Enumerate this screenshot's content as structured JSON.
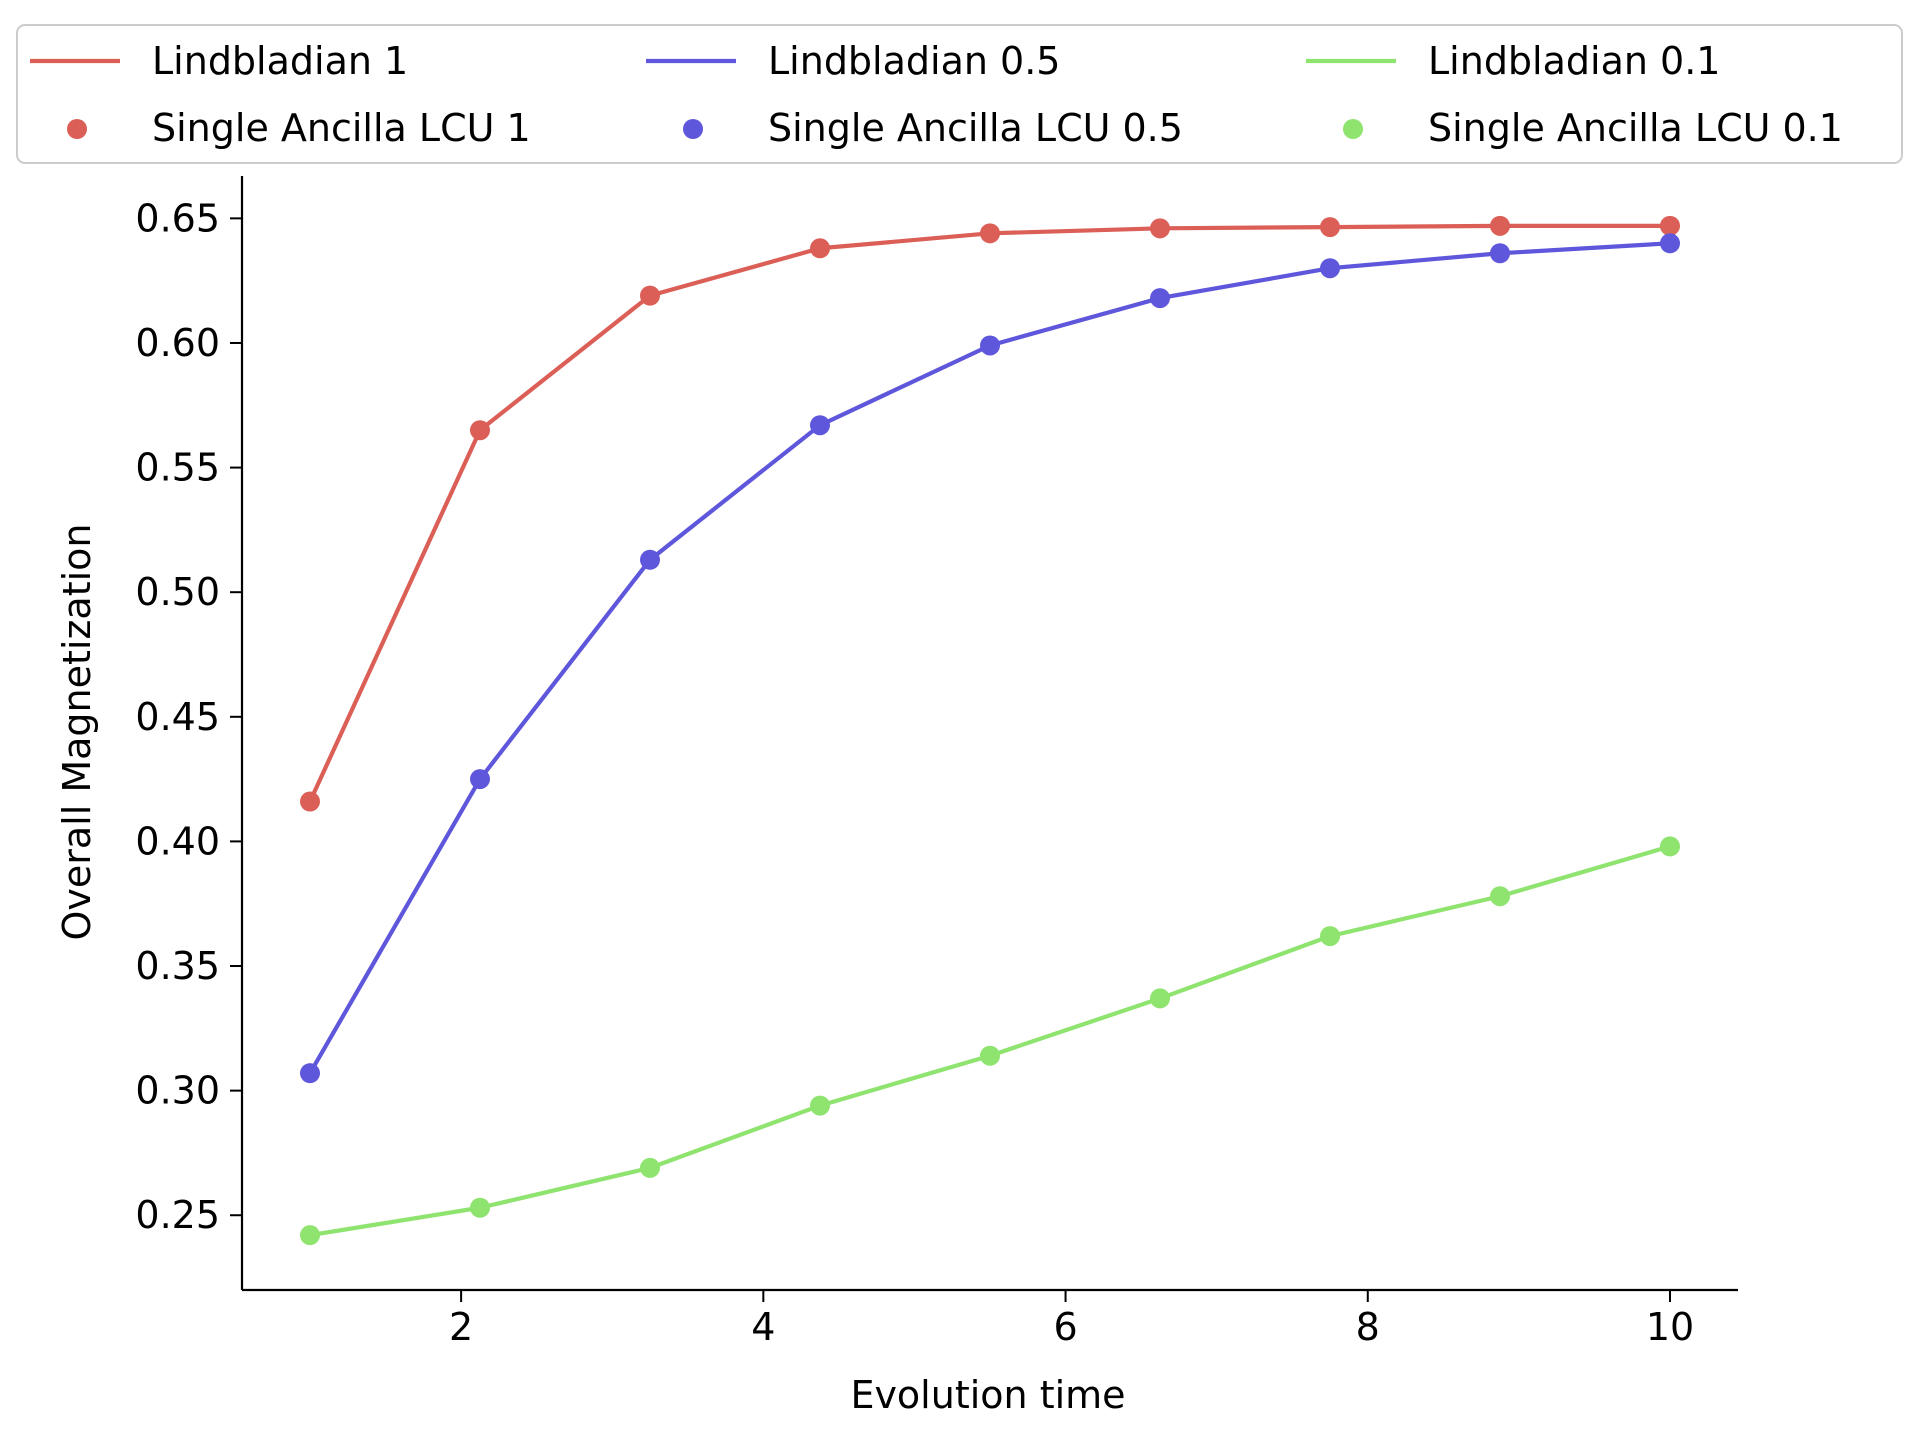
{
  "chart_data": {
    "type": "line",
    "title": "",
    "xlabel": "Evolution time",
    "ylabel": "Overall Magnetization",
    "xlim": [
      0.55,
      10.45
    ],
    "ylim": [
      0.22,
      0.667
    ],
    "xticks": [
      2,
      4,
      6,
      8,
      10
    ],
    "yticks": [
      0.25,
      0.3,
      0.35,
      0.4,
      0.45,
      0.5,
      0.55,
      0.6,
      0.65
    ],
    "xtick_labels": [
      "2",
      "4",
      "6",
      "8",
      "10"
    ],
    "ytick_labels": [
      "0.25",
      "0.30",
      "0.35",
      "0.40",
      "0.45",
      "0.50",
      "0.55",
      "0.60",
      "0.65"
    ],
    "grid": false,
    "legend_placement": "top, above plot, 3 columns",
    "x": [
      1.0,
      2.125,
      3.25,
      4.375,
      5.5,
      6.625,
      7.75,
      8.875,
      10.0
    ],
    "series": [
      {
        "name": "Lindbladian 1",
        "kind": "line",
        "color": "#db5f57",
        "values": [
          0.416,
          0.565,
          0.619,
          0.638,
          0.644,
          0.646,
          0.6465,
          0.647,
          0.647
        ]
      },
      {
        "name": "Lindbladian 0.5",
        "kind": "line",
        "color": "#5f57db",
        "values": [
          0.307,
          0.425,
          0.513,
          0.567,
          0.599,
          0.618,
          0.63,
          0.636,
          0.64
        ]
      },
      {
        "name": "Lindbladian 0.1",
        "kind": "line",
        "color": "#8fe36f",
        "values": [
          0.242,
          0.253,
          0.269,
          0.294,
          0.314,
          0.337,
          0.362,
          0.378,
          0.398
        ]
      },
      {
        "name": "Single Ancilla LCU 1",
        "kind": "scatter",
        "color": "#db5f57",
        "values": [
          0.416,
          0.565,
          0.619,
          0.638,
          0.644,
          0.646,
          0.6465,
          0.647,
          0.647
        ]
      },
      {
        "name": "Single Ancilla LCU 0.5",
        "kind": "scatter",
        "color": "#5f57db",
        "values": [
          0.307,
          0.425,
          0.513,
          0.567,
          0.599,
          0.618,
          0.63,
          0.636,
          0.64
        ]
      },
      {
        "name": "Single Ancilla LCU 0.1",
        "kind": "scatter",
        "color": "#8fe36f",
        "values": [
          0.242,
          0.253,
          0.269,
          0.294,
          0.314,
          0.337,
          0.362,
          0.378,
          0.398
        ]
      }
    ]
  }
}
